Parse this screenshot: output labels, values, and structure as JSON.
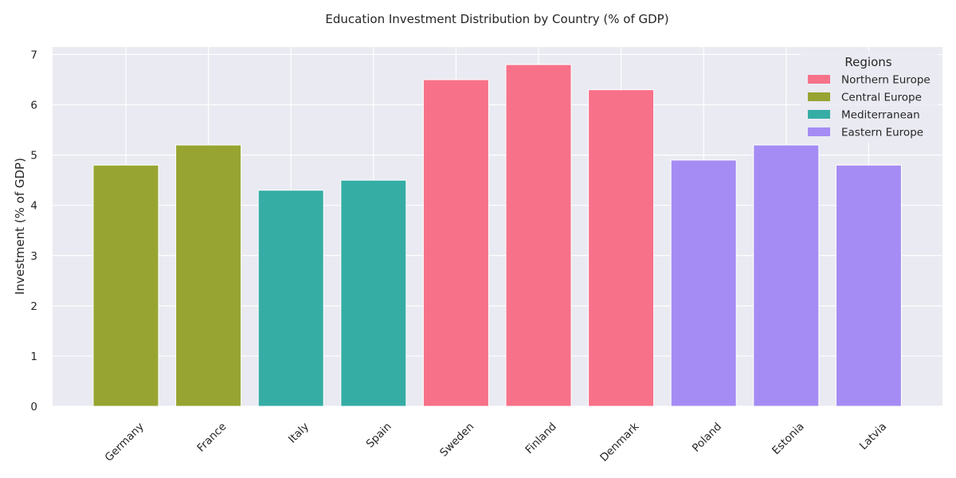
{
  "chart_data": {
    "type": "bar",
    "title": "Education Investment Distribution by Country (% of GDP)",
    "xlabel": "",
    "ylabel": "Investment (% of GDP)",
    "ylim": [
      0,
      7.15
    ],
    "yticks": [
      0,
      1,
      2,
      3,
      4,
      5,
      6,
      7
    ],
    "grid": true,
    "categories": [
      "Germany",
      "France",
      "Italy",
      "Spain",
      "Sweden",
      "Finland",
      "Denmark",
      "Poland",
      "Estonia",
      "Latvia"
    ],
    "values": [
      4.8,
      5.2,
      4.3,
      4.5,
      6.5,
      6.8,
      6.3,
      4.9,
      5.2,
      4.8
    ],
    "regions": [
      "Central Europe",
      "Central Europe",
      "Mediterranean",
      "Mediterranean",
      "Northern Europe",
      "Northern Europe",
      "Northern Europe",
      "Eastern Europe",
      "Eastern Europe",
      "Eastern Europe"
    ],
    "legend": {
      "title": "Regions",
      "placement": "top-right",
      "entries": [
        {
          "name": "Northern Europe",
          "color": "#f77189"
        },
        {
          "name": "Central Europe",
          "color": "#97a431"
        },
        {
          "name": "Mediterranean",
          "color": "#36ada4"
        },
        {
          "name": "Eastern Europe",
          "color": "#a48cf4"
        }
      ]
    }
  }
}
